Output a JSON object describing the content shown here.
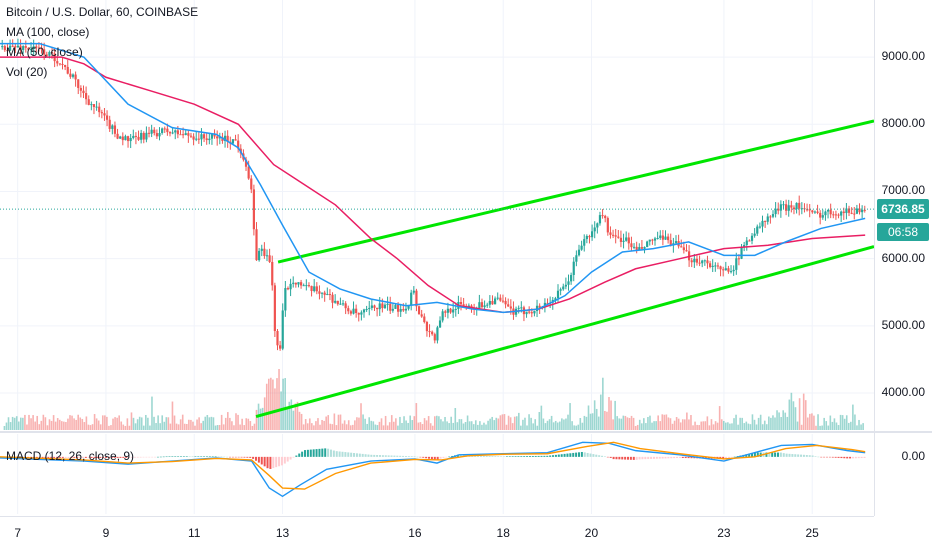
{
  "header": {
    "title": "Bitcoin / U.S. Dollar, 60, COINBASE",
    "indicators": [
      "MA (100, close)",
      "MA (50, close)",
      "Vol (20)"
    ]
  },
  "macd_legend": "MACD (12, 26, close, 9)",
  "last_price": "6736.85",
  "countdown": "06:58",
  "colors": {
    "up": "#26a69a",
    "down": "#ef5350",
    "ma100": "#e91e63",
    "ma50": "#2196f3",
    "trendline": "#00e600",
    "macd_line": "#2196f3",
    "signal_line": "#ff9800",
    "price_tag": "#26a69a"
  },
  "chart_data": [
    {
      "type": "candlestick",
      "title": "Bitcoin / U.S. Dollar, 60, COINBASE",
      "x_axis": {
        "unit": "day of month",
        "range": [
          6.6,
          26.4
        ],
        "ticks": [
          7,
          9,
          11,
          13,
          16,
          18,
          20,
          23,
          25
        ]
      },
      "y_axis": {
        "range": [
          3450,
          9850
        ],
        "ticks": [
          4000,
          5000,
          6000,
          7000,
          8000,
          9000
        ],
        "tick_labels": [
          "4000.00",
          "5000.00",
          "6000.00",
          "7000.00",
          "8000.00",
          "9000.00"
        ]
      },
      "price_path": [
        [
          6.6,
          9150
        ],
        [
          7.2,
          9150
        ],
        [
          7.6,
          9100
        ],
        [
          8.0,
          8950
        ],
        [
          8.3,
          8700
        ],
        [
          8.6,
          8400
        ],
        [
          9.0,
          8100
        ],
        [
          9.3,
          7850
        ],
        [
          9.6,
          7750
        ],
        [
          10.0,
          7850
        ],
        [
          10.4,
          7900
        ],
        [
          10.8,
          7850
        ],
        [
          11.2,
          7800
        ],
        [
          11.6,
          7800
        ],
        [
          12.0,
          7750
        ],
        [
          12.2,
          7500
        ],
        [
          12.35,
          7000
        ],
        [
          12.45,
          6000
        ],
        [
          12.6,
          6150
        ],
        [
          12.8,
          5900
        ],
        [
          12.9,
          4800
        ],
        [
          13.0,
          4600
        ],
        [
          13.1,
          5500
        ],
        [
          13.3,
          5700
        ],
        [
          13.6,
          5550
        ],
        [
          14.0,
          5500
        ],
        [
          14.4,
          5300
        ],
        [
          14.8,
          5150
        ],
        [
          15.2,
          5300
        ],
        [
          15.6,
          5250
        ],
        [
          15.9,
          5300
        ],
        [
          16.0,
          5600
        ],
        [
          16.1,
          5300
        ],
        [
          16.3,
          5000
        ],
        [
          16.5,
          4800
        ],
        [
          16.7,
          5200
        ],
        [
          17.0,
          5300
        ],
        [
          17.5,
          5300
        ],
        [
          17.9,
          5400
        ],
        [
          18.3,
          5200
        ],
        [
          18.8,
          5250
        ],
        [
          19.2,
          5400
        ],
        [
          19.5,
          5600
        ],
        [
          19.8,
          6200
        ],
        [
          20.1,
          6400
        ],
        [
          20.3,
          6700
        ],
        [
          20.5,
          6300
        ],
        [
          20.8,
          6300
        ],
        [
          21.1,
          6100
        ],
        [
          21.5,
          6300
        ],
        [
          21.9,
          6250
        ],
        [
          22.3,
          6000
        ],
        [
          22.7,
          5950
        ],
        [
          23.0,
          5800
        ],
        [
          23.3,
          5900
        ],
        [
          23.6,
          6300
        ],
        [
          23.9,
          6500
        ],
        [
          24.3,
          6750
        ],
        [
          24.7,
          6800
        ],
        [
          25.1,
          6650
        ],
        [
          25.5,
          6700
        ],
        [
          25.9,
          6700
        ],
        [
          26.2,
          6737
        ]
      ],
      "overlays": [
        {
          "name": "MA (100, close)",
          "points": [
            [
              6.6,
              9000
            ],
            [
              8.0,
              9000
            ],
            [
              8.5,
              8900
            ],
            [
              9.0,
              8700
            ],
            [
              10.0,
              8500
            ],
            [
              11.0,
              8300
            ],
            [
              12.0,
              8000
            ],
            [
              12.8,
              7400
            ],
            [
              13.5,
              7100
            ],
            [
              14.2,
              6800
            ],
            [
              15.0,
              6300
            ],
            [
              15.6,
              6000
            ],
            [
              16.3,
              5600
            ],
            [
              17.0,
              5300
            ],
            [
              18.0,
              5200
            ],
            [
              18.8,
              5250
            ],
            [
              19.5,
              5400
            ],
            [
              20.3,
              5650
            ],
            [
              21.0,
              5850
            ],
            [
              22.0,
              6000
            ],
            [
              23.0,
              6150
            ],
            [
              24.0,
              6200
            ],
            [
              25.0,
              6300
            ],
            [
              26.2,
              6350
            ]
          ]
        },
        {
          "name": "MA (50, close)",
          "points": [
            [
              6.6,
              9200
            ],
            [
              7.5,
              9200
            ],
            [
              8.5,
              9000
            ],
            [
              9.5,
              8300
            ],
            [
              10.5,
              7950
            ],
            [
              11.5,
              7850
            ],
            [
              12.0,
              7650
            ],
            [
              12.5,
              7100
            ],
            [
              13.0,
              6500
            ],
            [
              13.6,
              5800
            ],
            [
              14.3,
              5550
            ],
            [
              15.0,
              5400
            ],
            [
              15.8,
              5300
            ],
            [
              16.5,
              5350
            ],
            [
              17.3,
              5250
            ],
            [
              18.0,
              5200
            ],
            [
              18.8,
              5250
            ],
            [
              19.4,
              5450
            ],
            [
              20.0,
              5800
            ],
            [
              20.7,
              6100
            ],
            [
              21.4,
              6150
            ],
            [
              22.2,
              6250
            ],
            [
              23.0,
              6050
            ],
            [
              23.7,
              6050
            ],
            [
              24.4,
              6250
            ],
            [
              25.2,
              6450
            ],
            [
              26.2,
              6600
            ]
          ]
        },
        {
          "name": "upper channel",
          "points": [
            [
              12.9,
              5950
            ],
            [
              26.4,
              8050
            ]
          ]
        },
        {
          "name": "lower channel",
          "points": [
            [
              12.4,
              3650
            ],
            [
              26.4,
              6180
            ]
          ]
        }
      ],
      "volume_spikes_days": [
        12.8,
        13.0,
        20.3,
        24.6
      ]
    },
    {
      "type": "line",
      "title": "MACD (12, 26, close, 9)",
      "y_axis": {
        "ticks": [
          0
        ],
        "tick_labels": [
          "0.00"
        ],
        "range": [
          -550,
          220
        ]
      },
      "series": [
        {
          "name": "MACD",
          "points": [
            [
              6.6,
              -10
            ],
            [
              8.5,
              -40
            ],
            [
              9.5,
              -70
            ],
            [
              10.5,
              -40
            ],
            [
              11.5,
              -10
            ],
            [
              12.3,
              -40
            ],
            [
              12.7,
              -300
            ],
            [
              13.0,
              -380
            ],
            [
              13.4,
              -270
            ],
            [
              14.0,
              -120
            ],
            [
              15.0,
              -40
            ],
            [
              16.0,
              -20
            ],
            [
              16.5,
              -60
            ],
            [
              17.0,
              20
            ],
            [
              18.0,
              30
            ],
            [
              19.0,
              40
            ],
            [
              19.8,
              140
            ],
            [
              20.4,
              130
            ],
            [
              21.0,
              60
            ],
            [
              22.0,
              20
            ],
            [
              23.0,
              -40
            ],
            [
              23.6,
              30
            ],
            [
              24.3,
              110
            ],
            [
              25.0,
              120
            ],
            [
              25.8,
              60
            ],
            [
              26.2,
              40
            ]
          ]
        },
        {
          "name": "Signal",
          "points": [
            [
              6.6,
              0
            ],
            [
              8.5,
              -30
            ],
            [
              9.5,
              -60
            ],
            [
              10.5,
              -45
            ],
            [
              11.5,
              -15
            ],
            [
              12.3,
              -30
            ],
            [
              12.7,
              -180
            ],
            [
              13.0,
              -300
            ],
            [
              13.5,
              -310
            ],
            [
              14.2,
              -160
            ],
            [
              15.0,
              -60
            ],
            [
              16.0,
              -25
            ],
            [
              16.6,
              -30
            ],
            [
              17.2,
              10
            ],
            [
              18.0,
              25
            ],
            [
              19.0,
              30
            ],
            [
              19.9,
              100
            ],
            [
              20.5,
              140
            ],
            [
              21.1,
              80
            ],
            [
              22.0,
              30
            ],
            [
              23.0,
              -20
            ],
            [
              23.7,
              0
            ],
            [
              24.4,
              80
            ],
            [
              25.1,
              110
            ],
            [
              25.9,
              70
            ],
            [
              26.2,
              50
            ]
          ]
        }
      ]
    }
  ]
}
